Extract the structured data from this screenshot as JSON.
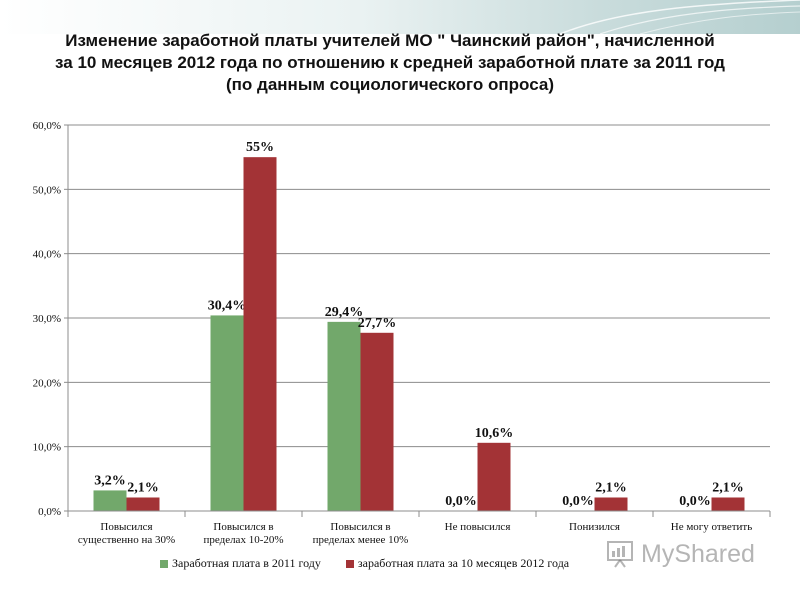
{
  "title_lines": [
    "Изменение заработной платы учителей МО \" Чаинский район\", начисленной",
    "за 10 месяцев 2012 года по отношению к средней заработной плате за 2011 год",
    "(по данным социологического опроса)"
  ],
  "watermark": {
    "text": "MyShared",
    "icon": "presentation-board-icon"
  },
  "colors": {
    "series1": "#72a86b",
    "series2": "#a33336",
    "grid": "#8c8c8c"
  },
  "chart_data": {
    "type": "bar",
    "categories": [
      [
        "Повысился",
        "существенно на 30%"
      ],
      [
        "Повысился в",
        "пределах 10-20%"
      ],
      [
        "Повысился в",
        "пределах менее 10%"
      ],
      [
        "Не повысился"
      ],
      [
        "Понизился"
      ],
      [
        "Не могу ответить"
      ]
    ],
    "series": [
      {
        "name": "Заработная плата в 2011 году",
        "values": [
          3.2,
          30.4,
          29.4,
          0.0,
          0.0,
          0.0
        ],
        "labels": [
          "3,2%",
          "30,4%",
          "29,4%",
          "0,0%",
          "0,0%",
          "0,0%"
        ]
      },
      {
        "name": "заработная плата за 10 месяцев 2012 года",
        "values": [
          2.1,
          55.0,
          27.7,
          10.6,
          2.1,
          2.1
        ],
        "labels": [
          "2,1%",
          "55%",
          "27,7%",
          "10,6%",
          "2,1%",
          "2,1%"
        ]
      }
    ],
    "ylim": [
      0,
      60
    ],
    "yticks": [
      0,
      10,
      20,
      30,
      40,
      50,
      60
    ],
    "ytick_labels": [
      "0,0%",
      "10,0%",
      "20,0%",
      "30,0%",
      "40,0%",
      "50,0%",
      "60,0%"
    ],
    "grid": true,
    "legend_position": "bottom"
  }
}
